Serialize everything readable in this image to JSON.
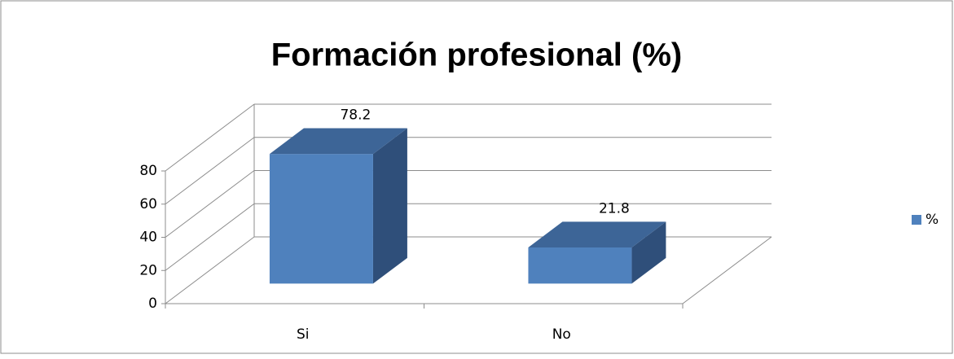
{
  "chart_data": {
    "type": "bar3d",
    "title": "Formación profesional (%)",
    "categories": [
      "Si",
      "No"
    ],
    "series": [
      {
        "name": "%",
        "color": "#4f81bd",
        "values": [
          78.2,
          21.8
        ]
      }
    ],
    "ylim": [
      0,
      80
    ],
    "yticks": [
      0,
      20,
      40,
      60,
      80
    ],
    "grid": true,
    "legend": "right"
  }
}
